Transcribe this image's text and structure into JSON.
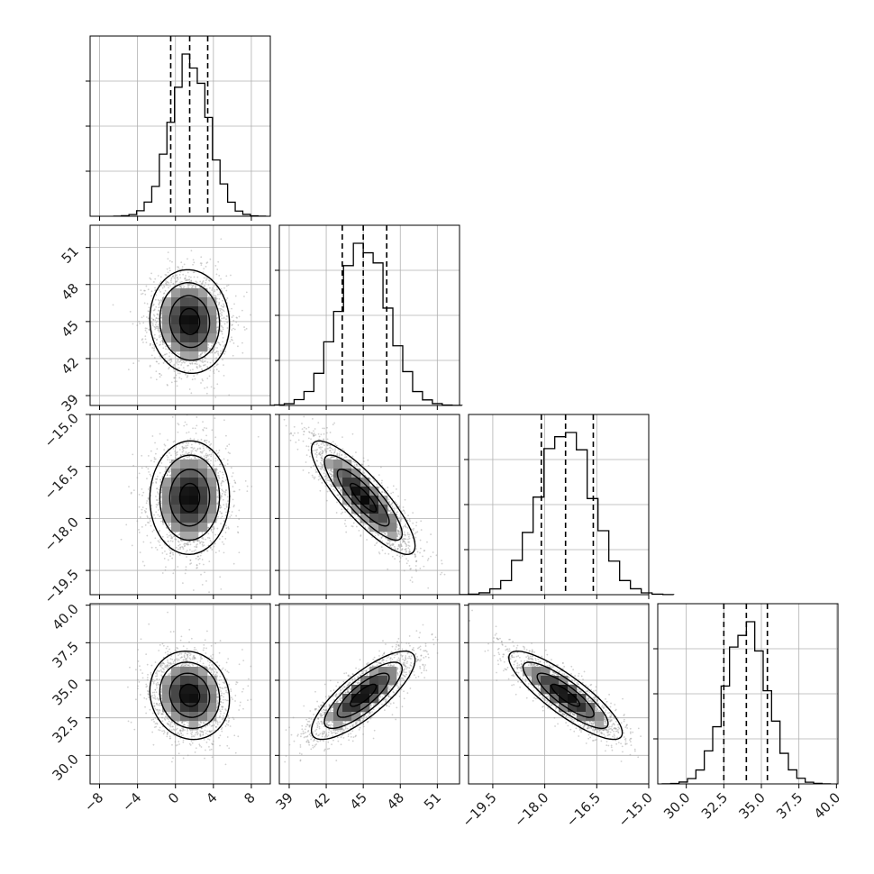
{
  "chart_data": {
    "type": "corner",
    "grid": true,
    "parameters": [
      {
        "id": "p0",
        "mean": 1.5,
        "std": 2.0,
        "quantiles": [
          -0.5,
          1.5,
          3.4
        ],
        "range": [
          -9,
          10
        ],
        "ticks": [
          -8,
          -4,
          0,
          4,
          8
        ],
        "tick_labels": [
          "−8",
          "−4",
          "0",
          "4",
          "8"
        ]
      },
      {
        "id": "p1",
        "mean": 45.0,
        "std": 2.0,
        "quantiles": [
          43.3,
          45.0,
          46.9
        ],
        "range": [
          38.2,
          52.8
        ],
        "ticks": [
          39,
          42,
          45,
          48,
          51
        ],
        "tick_labels": [
          "39",
          "42",
          "45",
          "48",
          "51"
        ]
      },
      {
        "id": "p2",
        "mean": -17.4,
        "std": 0.78,
        "quantiles": [
          -18.1,
          -17.4,
          -16.6
        ],
        "range": [
          -20.2,
          -15.0
        ],
        "ticks": [
          -19.5,
          -18.0,
          -16.5,
          -15.0
        ],
        "tick_labels": [
          "−19.5",
          "−18.0",
          "−16.5",
          "−15.0"
        ]
      },
      {
        "id": "p3",
        "mean": 34.0,
        "std": 1.4,
        "quantiles": [
          32.5,
          34.0,
          35.4
        ],
        "range": [
          28.1,
          40.1
        ],
        "ticks": [
          30.0,
          32.5,
          35.0,
          37.5,
          40.0
        ],
        "tick_labels": [
          "30.0",
          "32.5",
          "35.0",
          "37.5",
          "40.0"
        ]
      }
    ],
    "correlations": [
      {
        "row": 1,
        "col": 0,
        "rho": -0.05
      },
      {
        "row": 2,
        "col": 0,
        "rho": 0.02
      },
      {
        "row": 2,
        "col": 1,
        "rho": -0.85
      },
      {
        "row": 3,
        "col": 0,
        "rho": -0.1
      },
      {
        "row": 3,
        "col": 1,
        "rho": 0.8
      },
      {
        "row": 3,
        "col": 2,
        "rho": -0.85
      }
    ],
    "contour_levels_sigma": [
      0.5,
      1.0,
      1.5,
      2.0
    ],
    "histogram_bins": 20,
    "sample_count": 6000
  }
}
